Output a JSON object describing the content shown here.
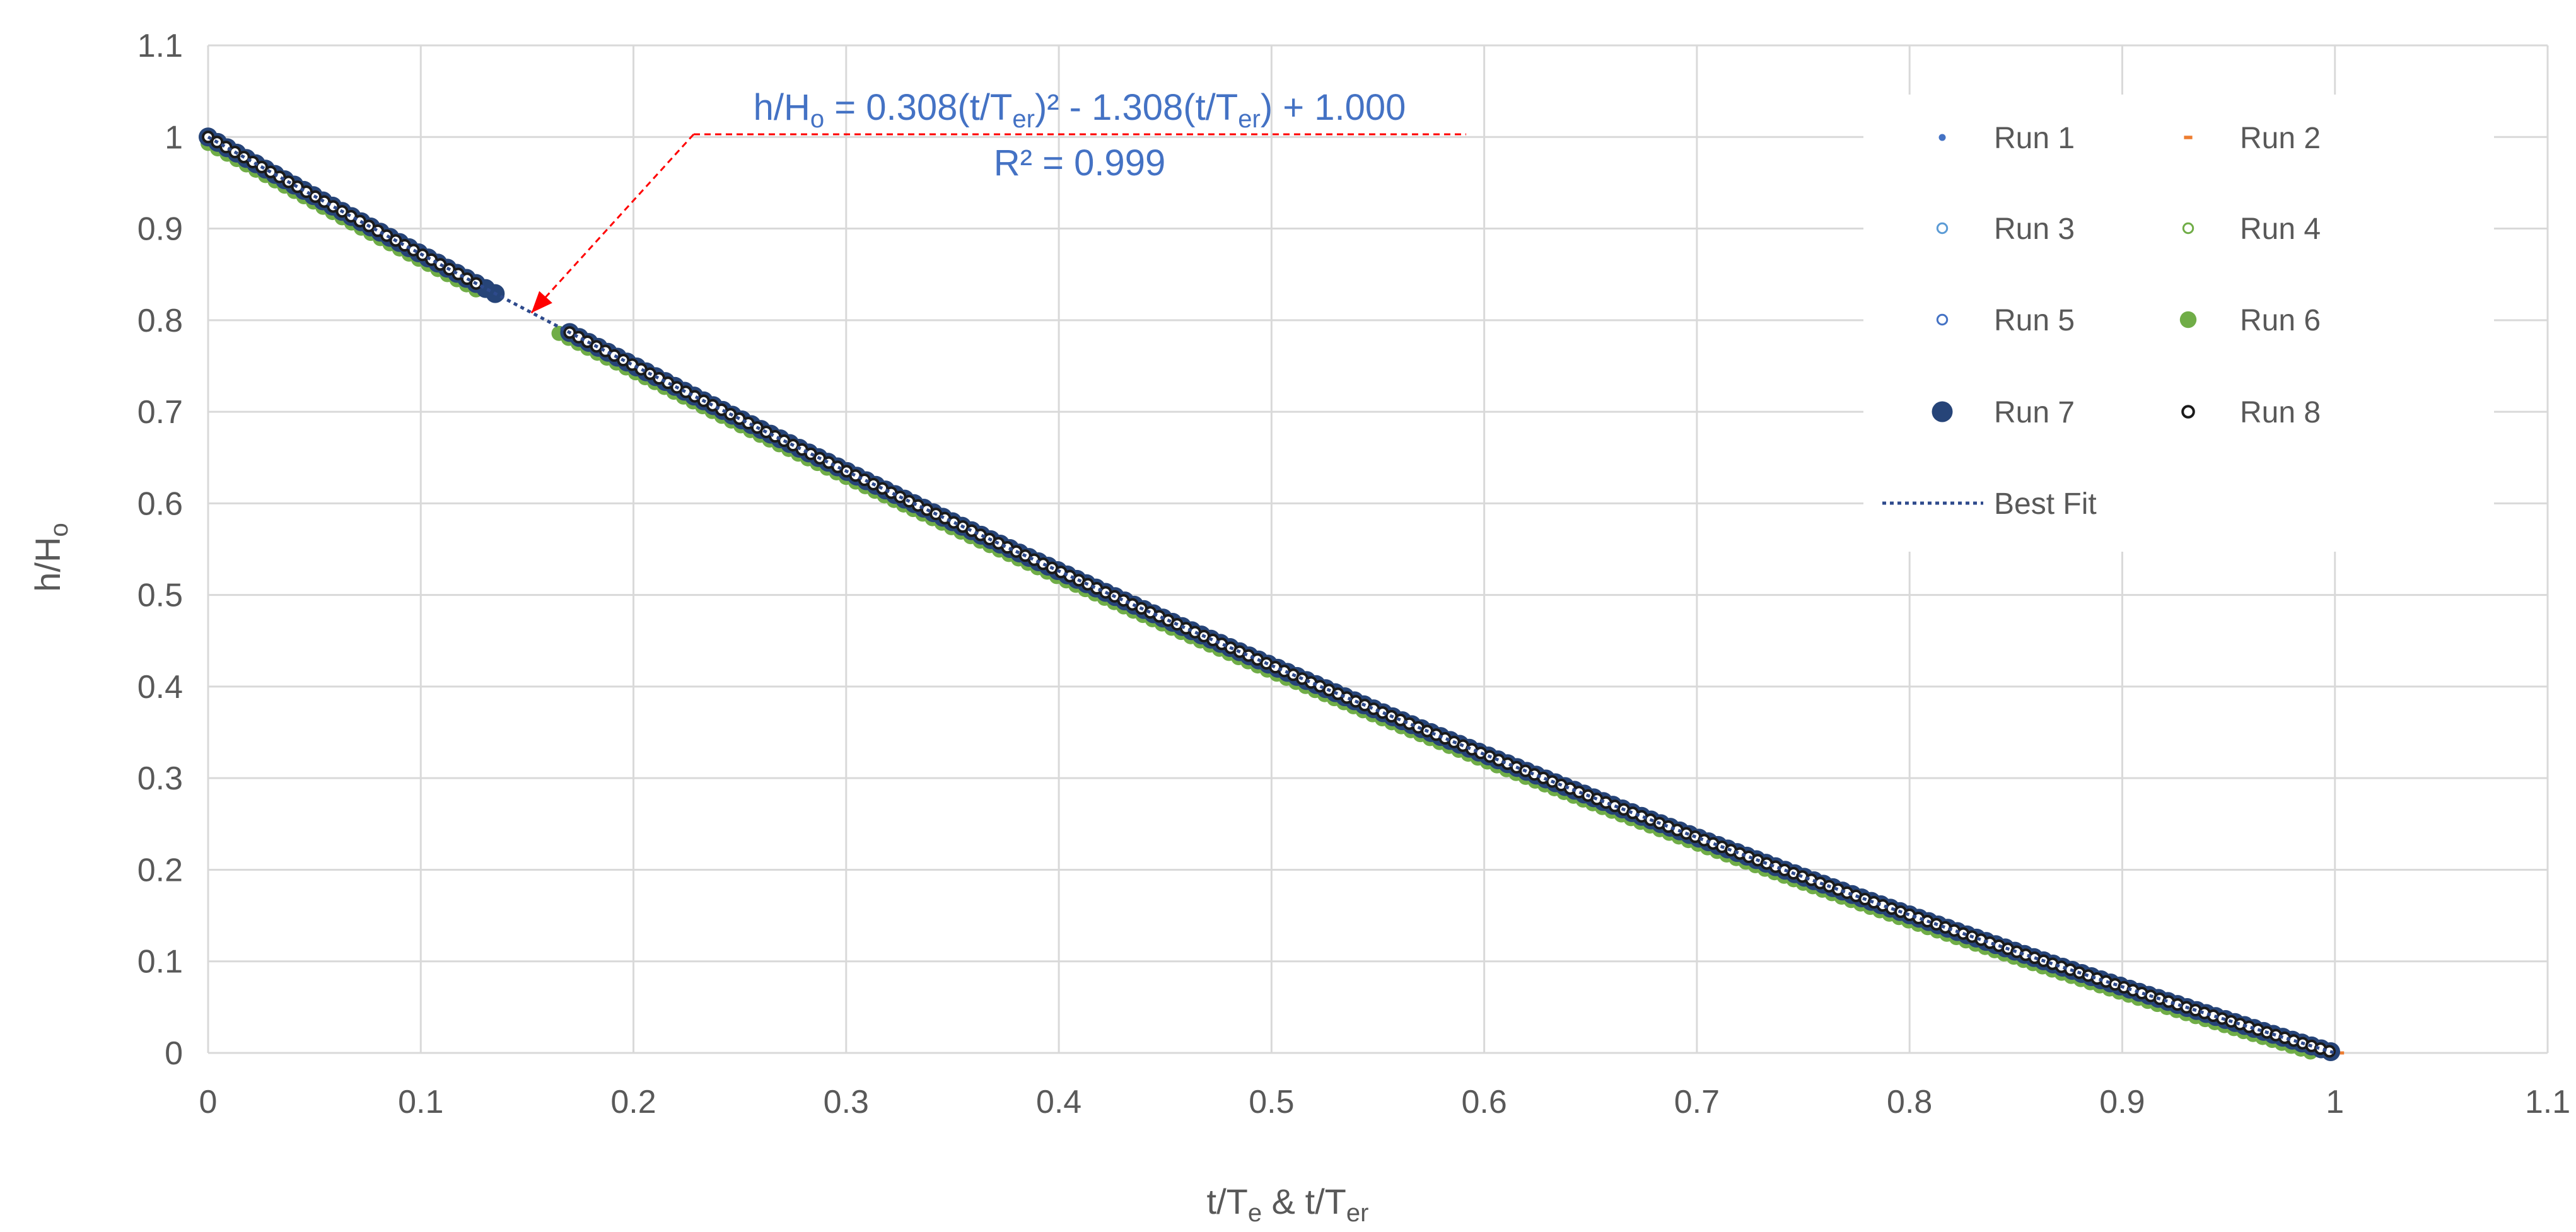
{
  "chart_data": {
    "type": "scatter",
    "xlabel": "t/Te & t/Ter",
    "ylabel": "h/Ho",
    "xlim": [
      0,
      1.1
    ],
    "ylim": [
      0,
      1.1
    ],
    "xticks": [
      0,
      0.1,
      0.2,
      0.3,
      0.4,
      0.5,
      0.6,
      0.7,
      0.8,
      0.9,
      1,
      1.1
    ],
    "yticks": [
      0,
      0.1,
      0.2,
      0.3,
      0.4,
      0.5,
      0.6,
      0.7,
      0.8,
      0.9,
      1,
      1.1
    ],
    "grid": true,
    "legend_position": "right",
    "fit": {
      "name": "Best Fit",
      "equation": "h/Ho = 0.308(t/Ter)² - 1.308(t/Ter) + 1.000",
      "r_squared": "R² = 0.999",
      "coefficients": [
        0.308,
        -1.308,
        1.0
      ],
      "color": "#2e4a8c"
    },
    "annotation_target": [
      0.152,
      0.808
    ],
    "series": [
      {
        "name": "Run 1",
        "marker": "dot-small",
        "color": "#4472c4",
        "x_ranges": [
          [
            0,
            0.13
          ],
          [
            0.17,
            0.995
          ]
        ]
      },
      {
        "name": "Run 2",
        "marker": "dash-small",
        "color": "#ed7d31",
        "x_ranges": [
          [
            0,
            0.13
          ],
          [
            0.17,
            1.005
          ]
        ]
      },
      {
        "name": "Run 3",
        "marker": "circle-open",
        "color": "#5b9bd5",
        "x_ranges": [
          [
            0,
            0.13
          ],
          [
            0.17,
            0.995
          ]
        ]
      },
      {
        "name": "Run 4",
        "marker": "circle-open",
        "color": "#70ad47",
        "x_ranges": [
          [
            0,
            0.13
          ],
          [
            0.17,
            0.995
          ]
        ]
      },
      {
        "name": "Run 5",
        "marker": "circle-open",
        "color": "#4472c4",
        "x_ranges": [
          [
            0,
            0.13
          ],
          [
            0.17,
            0.995
          ]
        ]
      },
      {
        "name": "Run 6",
        "marker": "circle-filled",
        "color": "#70ad47",
        "x_ranges": [
          [
            0,
            0.13
          ],
          [
            0.165,
            0.99
          ]
        ]
      },
      {
        "name": "Run 7",
        "marker": "circle-filled-large",
        "color": "#264478",
        "x_ranges": [
          [
            0,
            0.135
          ],
          [
            0.17,
            1.0
          ]
        ]
      },
      {
        "name": "Run 8",
        "marker": "circle-open-dark",
        "color": "#1a1a1a",
        "x_ranges": [
          [
            0,
            0.13
          ],
          [
            0.17,
            1.0
          ]
        ]
      }
    ]
  }
}
